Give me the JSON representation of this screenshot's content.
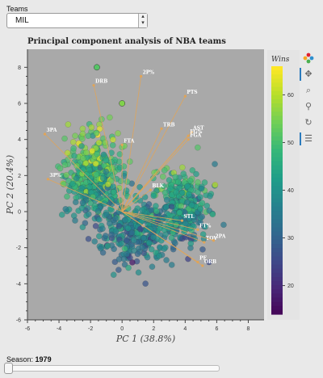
{
  "controls": {
    "teams_label": "Teams",
    "teams_selected": "MIL",
    "season_label": "Season:",
    "season_value": "1979"
  },
  "toolbar": [
    "bokeh-logo-icon",
    "pan-icon",
    "box-zoom-icon",
    "wheel-zoom-icon",
    "reset-icon",
    "hover-icon"
  ],
  "chart_data": {
    "type": "scatter",
    "title": "Principal component analysis of NBA teams",
    "xlabel": "PC 1 (38.8%)",
    "ylabel": "PC 2 (20.4%)",
    "xlim": [
      -6,
      9
    ],
    "ylim": [
      -6,
      9
    ],
    "xticks": [
      -6,
      -4,
      -2,
      0,
      2,
      4,
      6,
      8
    ],
    "yticks": [
      -6,
      -4,
      -2,
      0,
      2,
      4,
      6,
      8
    ],
    "grid": false,
    "colorbar": {
      "title": "Wins",
      "min": 14,
      "max": 66,
      "ticks": [
        20,
        30,
        40,
        50,
        60
      ],
      "palette": "viridis"
    },
    "loadings": [
      {
        "label": "DRB",
        "x": -1.8,
        "y": 7.0
      },
      {
        "label": "2P%",
        "x": 1.2,
        "y": 7.5
      },
      {
        "label": "PTS",
        "x": 4.0,
        "y": 6.4
      },
      {
        "label": "3PA",
        "x": -4.9,
        "y": 4.3
      },
      {
        "label": "TRB",
        "x": 2.5,
        "y": 4.6
      },
      {
        "label": "AST",
        "x": 4.4,
        "y": 4.4
      },
      {
        "label": "FG%",
        "x": 4.2,
        "y": 4.2
      },
      {
        "label": "FGA",
        "x": 4.2,
        "y": 4.0
      },
      {
        "label": "FTA",
        "x": 0.0,
        "y": 3.7
      },
      {
        "label": "3P%",
        "x": -4.7,
        "y": 1.8
      },
      {
        "label": "BLK",
        "x": 1.8,
        "y": 1.2
      },
      {
        "label": "STL",
        "x": 3.8,
        "y": -0.5
      },
      {
        "label": "FT%",
        "x": 4.8,
        "y": -1.0
      },
      {
        "label": "TOV",
        "x": 5.2,
        "y": -1.7
      },
      {
        "label": "2PA",
        "x": 5.8,
        "y": -1.6
      },
      {
        "label": "PF",
        "x": 4.8,
        "y": -2.8
      },
      {
        "label": "ORB",
        "x": 5.1,
        "y": -3.0
      }
    ],
    "highlighted_points": [
      {
        "x": -1.6,
        "y": 8.0,
        "wins": 52
      },
      {
        "x": 0.0,
        "y": 6.0,
        "wins": 56
      }
    ],
    "point_count": 1000
  }
}
